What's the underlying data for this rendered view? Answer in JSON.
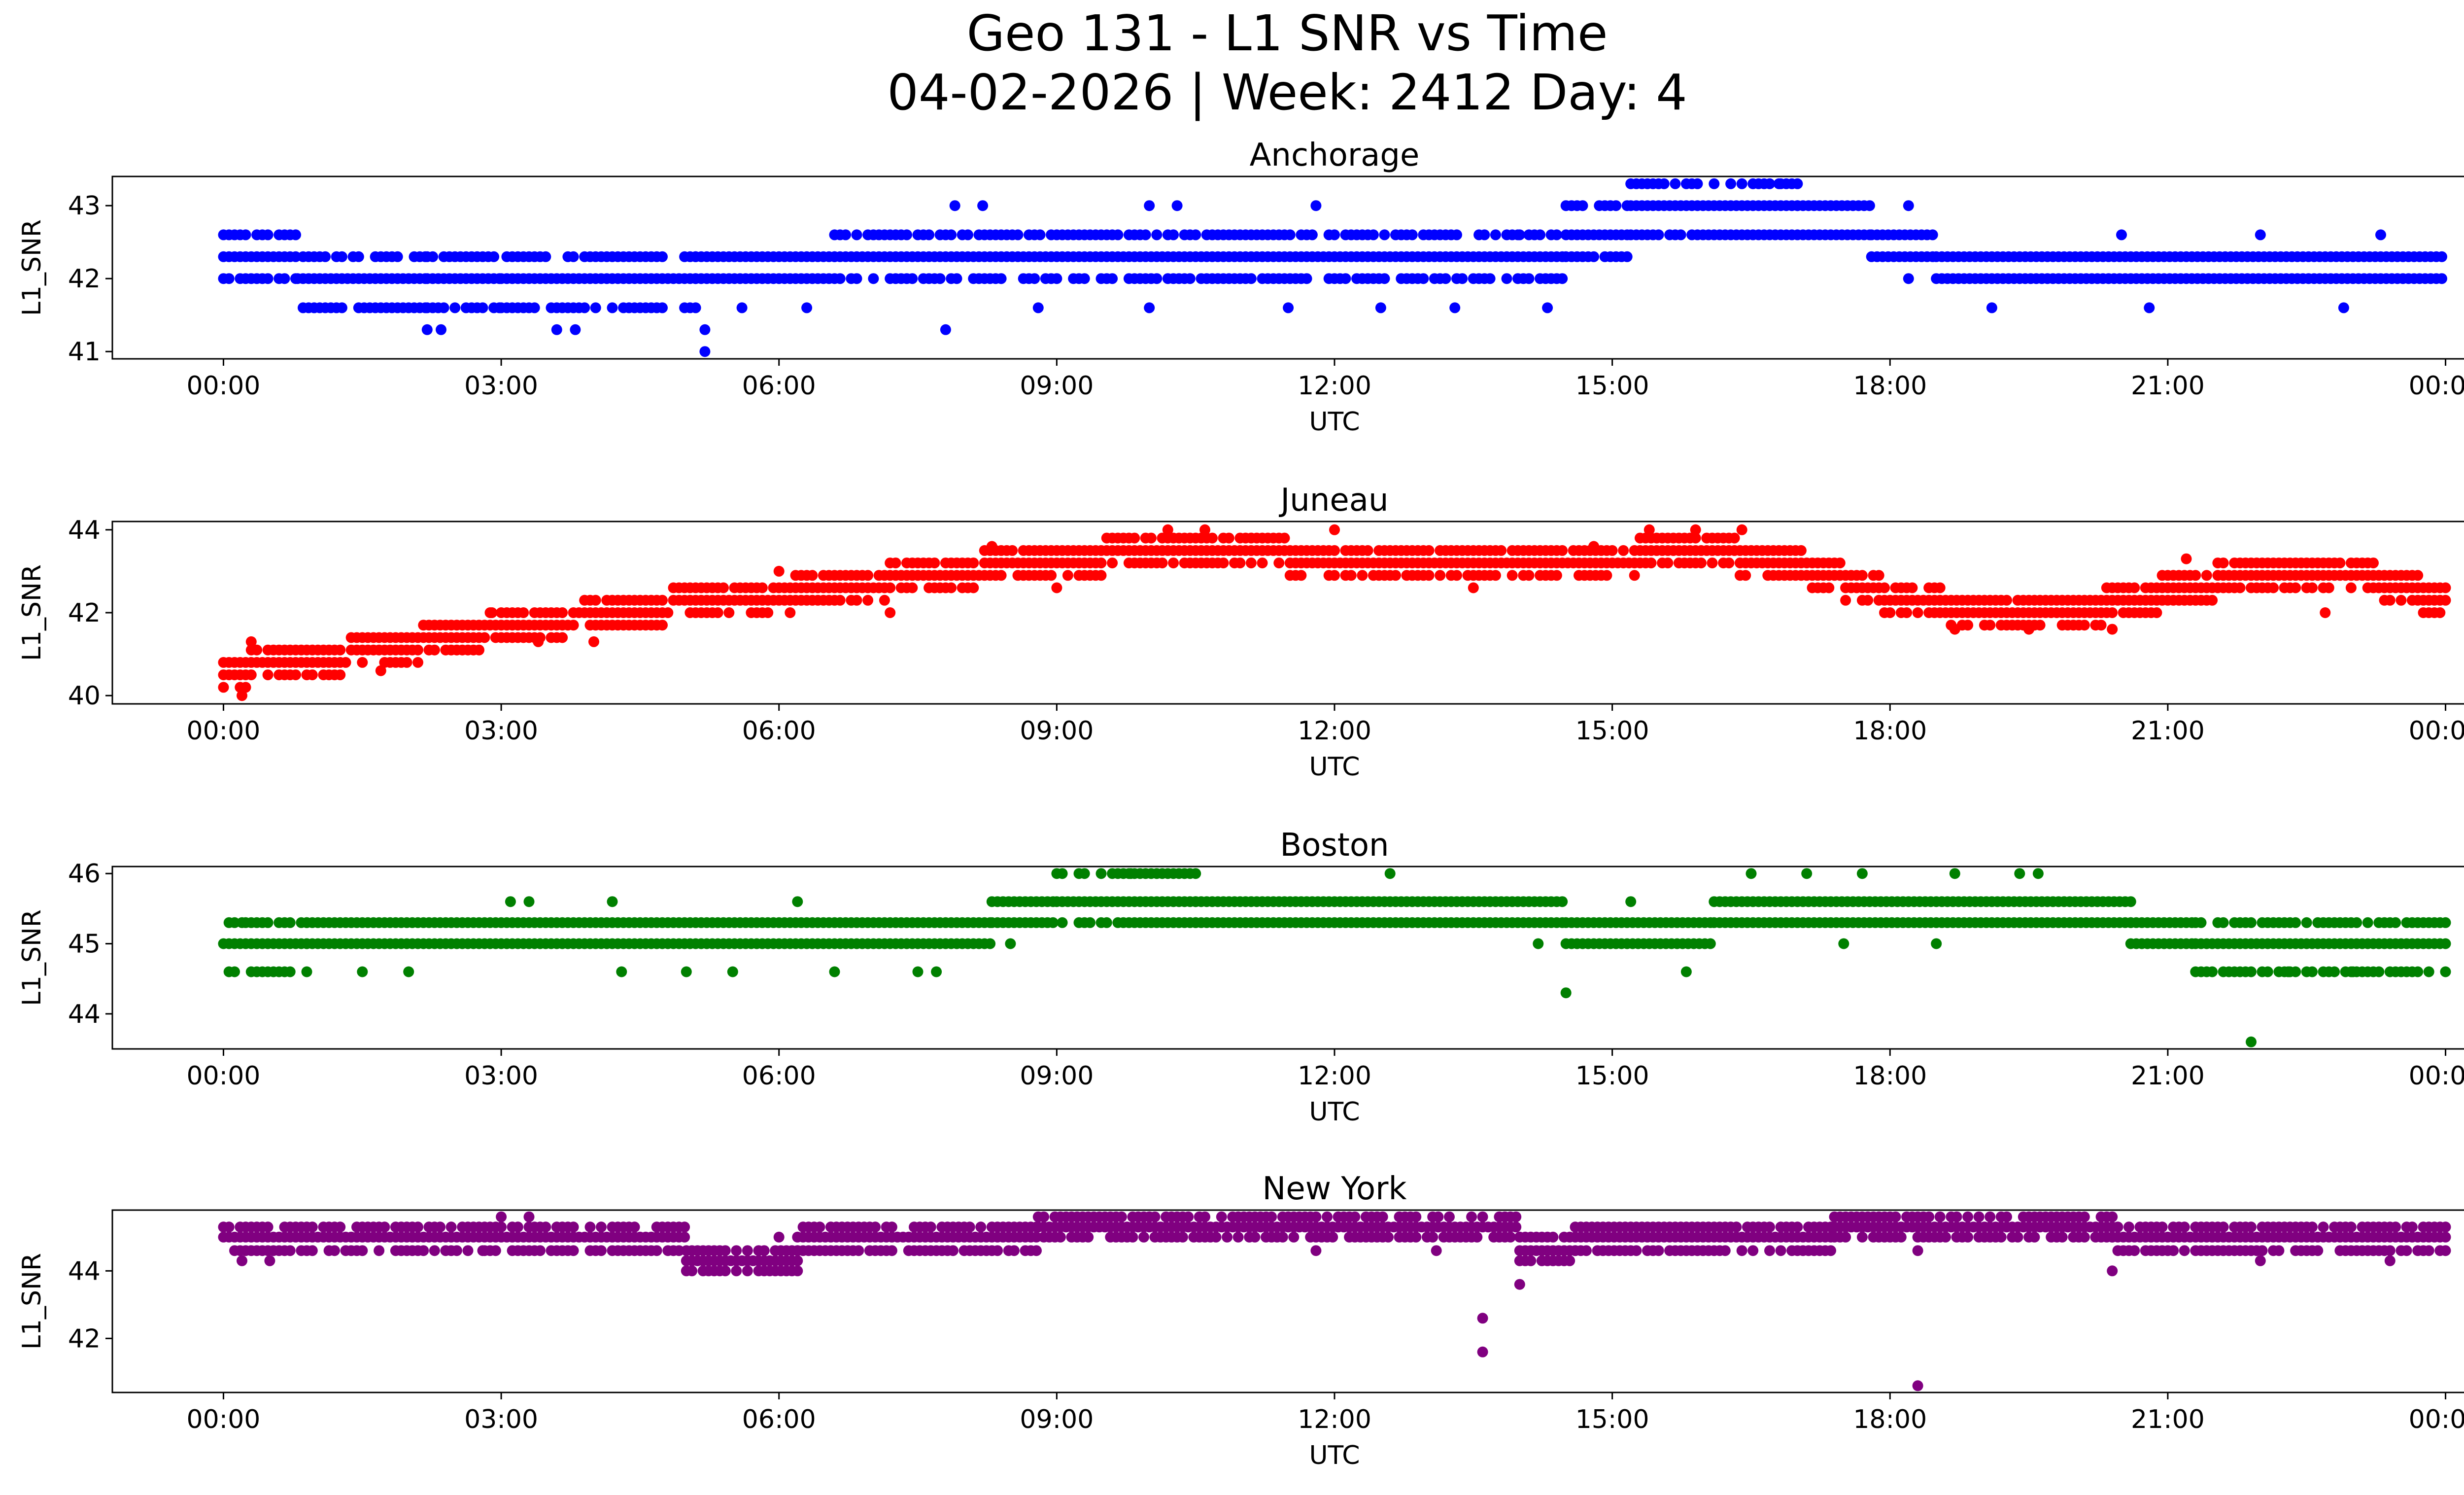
{
  "figure": {
    "title_line1": "Geo 131 - L1 SNR vs Time",
    "title_line2": "04-02-2026 | Week: 2412 Day: 4"
  },
  "chart_data": [
    {
      "type": "scatter",
      "title": "Anchorage",
      "xlabel": "UTC",
      "ylabel": "L1_SNR",
      "color": "#0000ff",
      "x_ticks": [
        "00:00",
        "03:00",
        "06:00",
        "09:00",
        "12:00",
        "15:00",
        "18:00",
        "21:00",
        "00:00"
      ],
      "y_ticks": [
        41,
        42,
        43
      ],
      "xlim_hours": [
        -1.2,
        25.2
      ],
      "ylim": [
        40.9,
        43.4
      ],
      "segments": [
        {
          "start": 0.0,
          "end": 0.8,
          "levels": [
            42.0,
            42.3,
            42.6
          ]
        },
        {
          "start": 0.8,
          "end": 2.2,
          "levels": [
            41.6,
            42.0,
            42.3
          ]
        },
        {
          "start": 2.2,
          "end": 3.0,
          "levels": [
            41.6,
            42.0,
            42.3
          ]
        },
        {
          "start": 3.0,
          "end": 5.1,
          "levels": [
            41.6,
            42.0,
            42.3
          ]
        },
        {
          "start": 5.1,
          "end": 6.6,
          "levels": [
            42.0,
            42.3
          ]
        },
        {
          "start": 6.6,
          "end": 14.5,
          "levels": [
            42.0,
            42.3,
            42.6
          ]
        },
        {
          "start": 14.5,
          "end": 15.2,
          "levels": [
            42.3,
            42.6,
            43.0
          ]
        },
        {
          "start": 15.2,
          "end": 17.0,
          "levels": [
            42.6,
            43.0,
            43.3
          ]
        },
        {
          "start": 17.0,
          "end": 17.8,
          "levels": [
            42.6,
            43.0
          ]
        },
        {
          "start": 17.8,
          "end": 18.5,
          "levels": [
            42.3,
            42.6
          ]
        },
        {
          "start": 18.5,
          "end": 24.0,
          "levels": [
            42.0,
            42.3
          ]
        }
      ],
      "sparse_points": [
        [
          2.2,
          41.3
        ],
        [
          2.35,
          41.3
        ],
        [
          3.6,
          41.3
        ],
        [
          3.8,
          41.3
        ],
        [
          5.2,
          41.0
        ],
        [
          5.2,
          41.3
        ],
        [
          5.6,
          41.6
        ],
        [
          6.3,
          41.6
        ],
        [
          7.9,
          43.0
        ],
        [
          8.2,
          43.0
        ],
        [
          7.8,
          41.3
        ],
        [
          8.8,
          41.6
        ],
        [
          10.0,
          43.0
        ],
        [
          10.3,
          43.0
        ],
        [
          10.0,
          41.6
        ],
        [
          11.5,
          41.6
        ],
        [
          11.8,
          43.0
        ],
        [
          12.5,
          41.6
        ],
        [
          13.3,
          41.6
        ],
        [
          14.0,
          42.6
        ],
        [
          14.3,
          41.6
        ],
        [
          16.8,
          43.3
        ],
        [
          18.2,
          43.0
        ],
        [
          18.2,
          42.0
        ],
        [
          19.1,
          41.6
        ],
        [
          20.5,
          42.6
        ],
        [
          20.8,
          41.6
        ],
        [
          22.0,
          42.6
        ],
        [
          22.9,
          41.6
        ],
        [
          23.3,
          42.6
        ]
      ]
    },
    {
      "type": "scatter",
      "title": "Juneau",
      "xlabel": "UTC",
      "ylabel": "L1_SNR",
      "color": "#ff0000",
      "x_ticks": [
        "00:00",
        "03:00",
        "06:00",
        "09:00",
        "12:00",
        "15:00",
        "18:00",
        "21:00",
        "00:00"
      ],
      "y_ticks": [
        40,
        42,
        44
      ],
      "xlim_hours": [
        -1.2,
        25.2
      ],
      "ylim": [
        39.8,
        44.2
      ],
      "curve": [
        [
          0.0,
          40.6
        ],
        [
          1.0,
          40.8
        ],
        [
          2.0,
          41.2
        ],
        [
          3.0,
          41.6
        ],
        [
          4.0,
          41.9
        ],
        [
          5.0,
          42.2
        ],
        [
          6.0,
          42.4
        ],
        [
          7.0,
          42.7
        ],
        [
          8.0,
          43.0
        ],
        [
          9.0,
          43.3
        ],
        [
          10.0,
          43.4
        ],
        [
          11.0,
          43.4
        ],
        [
          12.0,
          43.3
        ],
        [
          13.0,
          43.2
        ],
        [
          14.0,
          43.2
        ],
        [
          15.0,
          43.3
        ],
        [
          16.0,
          43.5
        ],
        [
          17.0,
          43.1
        ],
        [
          18.0,
          42.4
        ],
        [
          19.0,
          42.0
        ],
        [
          20.0,
          42.0
        ],
        [
          21.0,
          42.5
        ],
        [
          22.0,
          43.0
        ],
        [
          23.0,
          42.9
        ],
        [
          24.0,
          42.3
        ]
      ],
      "sparse_points": [
        [
          0.2,
          40.0
        ],
        [
          0.3,
          41.3
        ],
        [
          1.7,
          40.6
        ],
        [
          2.9,
          42.0
        ],
        [
          3.4,
          41.3
        ],
        [
          4.0,
          41.3
        ],
        [
          6.0,
          43.0
        ],
        [
          7.2,
          42.0
        ],
        [
          8.3,
          43.6
        ],
        [
          9.0,
          42.6
        ],
        [
          10.2,
          44.0
        ],
        [
          10.6,
          44.0
        ],
        [
          12.0,
          44.0
        ],
        [
          13.5,
          42.6
        ],
        [
          14.8,
          43.6
        ],
        [
          15.4,
          44.0
        ],
        [
          15.9,
          44.0
        ],
        [
          16.4,
          44.0
        ],
        [
          18.7,
          41.6
        ],
        [
          19.5,
          41.6
        ],
        [
          20.4,
          41.6
        ],
        [
          21.2,
          43.3
        ],
        [
          22.7,
          42.0
        ]
      ]
    },
    {
      "type": "scatter",
      "title": "Boston",
      "xlabel": "UTC",
      "ylabel": "L1_SNR",
      "color": "#008000",
      "x_ticks": [
        "00:00",
        "03:00",
        "06:00",
        "09:00",
        "12:00",
        "15:00",
        "18:00",
        "21:00",
        "00:00"
      ],
      "y_ticks": [
        44,
        45,
        46
      ],
      "xlim_hours": [
        -1.2,
        25.2
      ],
      "ylim": [
        43.5,
        46.1
      ],
      "segments": [
        {
          "start": 0.0,
          "end": 0.9,
          "levels": [
            44.6,
            45.0,
            45.3
          ]
        },
        {
          "start": 0.9,
          "end": 8.3,
          "levels": [
            45.0,
            45.3
          ]
        },
        {
          "start": 8.3,
          "end": 9.0,
          "levels": [
            45.3,
            45.6
          ]
        },
        {
          "start": 9.0,
          "end": 10.5,
          "levels": [
            45.3,
            45.6,
            46.0
          ]
        },
        {
          "start": 10.5,
          "end": 14.5,
          "levels": [
            45.3,
            45.6
          ]
        },
        {
          "start": 14.5,
          "end": 16.1,
          "levels": [
            45.0,
            45.3
          ]
        },
        {
          "start": 16.1,
          "end": 20.6,
          "levels": [
            45.3,
            45.6
          ]
        },
        {
          "start": 20.6,
          "end": 21.3,
          "levels": [
            45.0,
            45.3
          ]
        },
        {
          "start": 21.3,
          "end": 24.0,
          "levels": [
            44.6,
            45.0,
            45.3
          ]
        }
      ],
      "sparse_points": [
        [
          0.2,
          45.3
        ],
        [
          1.5,
          44.6
        ],
        [
          2.0,
          44.6
        ],
        [
          3.1,
          45.6
        ],
        [
          3.3,
          45.6
        ],
        [
          4.2,
          45.6
        ],
        [
          4.3,
          44.6
        ],
        [
          5.0,
          44.6
        ],
        [
          5.5,
          44.6
        ],
        [
          6.2,
          45.6
        ],
        [
          6.6,
          44.6
        ],
        [
          7.5,
          44.6
        ],
        [
          7.7,
          44.6
        ],
        [
          8.5,
          45.0
        ],
        [
          9.8,
          46.0
        ],
        [
          12.6,
          46.0
        ],
        [
          14.2,
          45.0
        ],
        [
          14.5,
          44.3
        ],
        [
          15.2,
          45.6
        ],
        [
          15.8,
          44.6
        ],
        [
          16.5,
          46.0
        ],
        [
          17.1,
          46.0
        ],
        [
          17.5,
          45.0
        ],
        [
          17.7,
          46.0
        ],
        [
          18.5,
          45.0
        ],
        [
          18.7,
          46.0
        ],
        [
          19.4,
          46.0
        ],
        [
          19.6,
          46.0
        ],
        [
          21.9,
          43.6
        ],
        [
          22.3,
          44.6
        ],
        [
          23.0,
          44.6
        ]
      ]
    },
    {
      "type": "scatter",
      "title": "New York",
      "xlabel": "UTC",
      "ylabel": "L1_SNR",
      "color": "#800080",
      "x_ticks": [
        "00:00",
        "03:00",
        "06:00",
        "09:00",
        "12:00",
        "15:00",
        "18:00",
        "21:00",
        "00:00"
      ],
      "y_ticks": [
        42,
        44
      ],
      "xlim_hours": [
        -1.2,
        25.2
      ],
      "ylim": [
        40.4,
        45.8
      ],
      "segments": [
        {
          "start": 0.0,
          "end": 5.0,
          "levels": [
            44.6,
            45.0,
            45.3
          ]
        },
        {
          "start": 5.0,
          "end": 6.2,
          "levels": [
            44.0,
            44.3,
            44.6
          ]
        },
        {
          "start": 6.2,
          "end": 8.8,
          "levels": [
            44.6,
            45.0,
            45.3
          ]
        },
        {
          "start": 8.8,
          "end": 14.0,
          "levels": [
            45.0,
            45.3,
            45.6
          ]
        },
        {
          "start": 14.0,
          "end": 14.6,
          "levels": [
            44.3,
            44.6,
            45.0
          ]
        },
        {
          "start": 14.6,
          "end": 17.4,
          "levels": [
            44.6,
            45.0,
            45.3
          ]
        },
        {
          "start": 17.4,
          "end": 20.4,
          "levels": [
            45.0,
            45.3,
            45.6
          ]
        },
        {
          "start": 20.4,
          "end": 24.0,
          "levels": [
            44.6,
            45.0,
            45.3
          ]
        }
      ],
      "sparse_points": [
        [
          0.2,
          44.3
        ],
        [
          0.5,
          44.3
        ],
        [
          2.8,
          44.6
        ],
        [
          3.0,
          45.6
        ],
        [
          3.3,
          45.6
        ],
        [
          5.3,
          44.0
        ],
        [
          6.0,
          45.0
        ],
        [
          10.0,
          45.6
        ],
        [
          11.8,
          44.6
        ],
        [
          13.1,
          44.6
        ],
        [
          13.6,
          42.6
        ],
        [
          13.6,
          41.6
        ],
        [
          14.0,
          43.6
        ],
        [
          18.3,
          40.6
        ],
        [
          18.3,
          44.6
        ],
        [
          20.4,
          44.0
        ],
        [
          22.0,
          44.3
        ],
        [
          23.4,
          44.3
        ]
      ]
    }
  ]
}
